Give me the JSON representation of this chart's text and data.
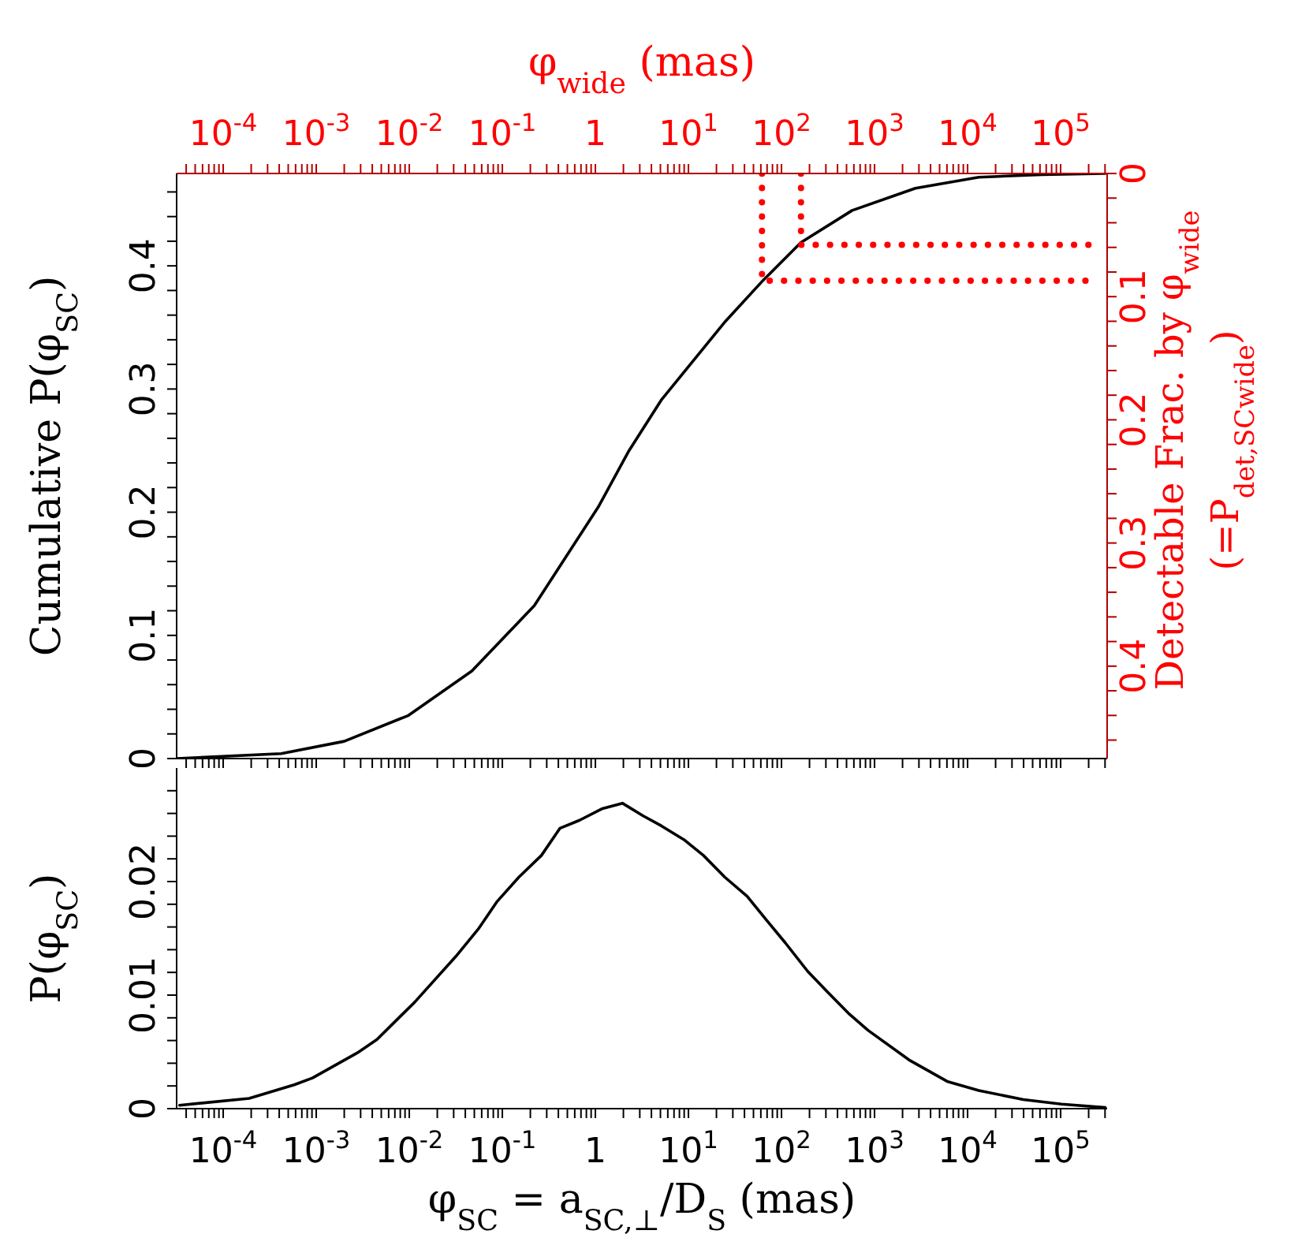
{
  "chart_data": [
    {
      "type": "line",
      "ylabel": "Cumulative P(φ$_{SC}$)",
      "xlabel": "φ$_{wide}$ (mas)",
      "y2label": "Detectable Frac. by φ$_{wide}$\n(=P$_{det,SC}$$_{wide}$)",
      "log": "x",
      "xlim": [
        3.16e-05,
        316000.0
      ],
      "xticks": [
        {
          "value": 4e-05,
          "label": null
        },
        {
          "value": 5e-05,
          "label": null
        },
        {
          "value": 6e-05,
          "label": null
        },
        {
          "value": 7e-05,
          "label": null
        },
        {
          "value": 8e-05,
          "label": null
        },
        {
          "value": 9e-05,
          "label": null
        },
        {
          "value": 0.0001,
          "label": "10$^{-4}$"
        },
        {
          "value": 0.0002,
          "label": null
        },
        {
          "value": 0.0003,
          "label": null
        },
        {
          "value": 0.0004,
          "label": null
        },
        {
          "value": 0.0005,
          "label": null
        },
        {
          "value": 0.0006,
          "label": null
        },
        {
          "value": 0.0007,
          "label": null
        },
        {
          "value": 0.0008,
          "label": null
        },
        {
          "value": 0.0009,
          "label": null
        },
        {
          "value": 0.001,
          "label": "10$^{-3}$"
        },
        {
          "value": 0.002,
          "label": null
        },
        {
          "value": 0.003,
          "label": null
        },
        {
          "value": 0.004,
          "label": null
        },
        {
          "value": 0.005,
          "label": null
        },
        {
          "value": 0.006,
          "label": null
        },
        {
          "value": 0.007,
          "label": null
        },
        {
          "value": 0.008,
          "label": null
        },
        {
          "value": 0.009,
          "label": null
        },
        {
          "value": 0.01,
          "label": "10$^{-2}$"
        },
        {
          "value": 0.02,
          "label": null
        },
        {
          "value": 0.03,
          "label": null
        },
        {
          "value": 0.04,
          "label": null
        },
        {
          "value": 0.05,
          "label": null
        },
        {
          "value": 0.06,
          "label": null
        },
        {
          "value": 0.07,
          "label": null
        },
        {
          "value": 0.08,
          "label": null
        },
        {
          "value": 0.09,
          "label": null
        },
        {
          "value": 0.1,
          "label": "10$^{-1}$"
        },
        {
          "value": 0.2,
          "label": null
        },
        {
          "value": 0.3,
          "label": null
        },
        {
          "value": 0.4,
          "label": null
        },
        {
          "value": 0.5,
          "label": null
        },
        {
          "value": 0.6,
          "label": null
        },
        {
          "value": 0.7,
          "label": null
        },
        {
          "value": 0.8,
          "label": null
        },
        {
          "value": 0.9,
          "label": null
        },
        1,
        {
          "value": 2,
          "label": null
        },
        {
          "value": 3,
          "label": null
        },
        {
          "value": 4,
          "label": null
        },
        {
          "value": 5,
          "label": null
        },
        {
          "value": 6,
          "label": null
        },
        {
          "value": 7,
          "label": null
        },
        {
          "value": 8,
          "label": null
        },
        {
          "value": 9,
          "label": null
        },
        {
          "value": 10,
          "label": "10$^{1}$"
        },
        {
          "value": 20,
          "label": null
        },
        {
          "value": 30,
          "label": null
        },
        {
          "value": 40,
          "label": null
        },
        {
          "value": 50,
          "label": null
        },
        {
          "value": 60,
          "label": null
        },
        {
          "value": 70,
          "label": null
        },
        {
          "value": 80,
          "label": null
        },
        {
          "value": 90,
          "label": null
        },
        {
          "value": 100,
          "label": "10$^{2}$"
        },
        {
          "value": 200,
          "label": null
        },
        {
          "value": 300,
          "label": null
        },
        {
          "value": 400,
          "label": null
        },
        {
          "value": 500,
          "label": null
        },
        {
          "value": 600,
          "label": null
        },
        {
          "value": 700,
          "label": null
        },
        {
          "value": 800,
          "label": null
        },
        {
          "value": 900,
          "label": null
        },
        {
          "value": 1000,
          "label": "10$^{3}$"
        },
        {
          "value": 2000,
          "label": null
        },
        {
          "value": 3000,
          "label": null
        },
        {
          "value": 4000,
          "label": null
        },
        {
          "value": 5000,
          "label": null
        },
        {
          "value": 6000,
          "label": null
        },
        {
          "value": 7000,
          "label": null
        },
        {
          "value": 8000,
          "label": null
        },
        {
          "value": 9000,
          "label": null
        },
        {
          "value": 10000,
          "label": "10$^{4}$"
        },
        {
          "value": 20000,
          "label": null
        },
        {
          "value": 30000,
          "label": null
        },
        {
          "value": 40000,
          "label": null
        },
        {
          "value": 50000,
          "label": null
        },
        {
          "value": 60000,
          "label": null
        },
        {
          "value": 70000,
          "label": null
        },
        {
          "value": 80000,
          "label": null
        },
        {
          "value": 90000,
          "label": null
        },
        {
          "value": 100000,
          "label": "10$^{5}$"
        },
        {
          "value": 200000,
          "label": null
        },
        {
          "value": 300000,
          "label": null
        }
      ],
      "ylim": [
        0,
        0.475
      ],
      "yticks": [
        0,
        {
          "value": 0.02,
          "label": null
        },
        {
          "value": 0.04,
          "label": null
        },
        {
          "value": 0.06,
          "label": null
        },
        {
          "value": 0.08,
          "label": null
        },
        0.1,
        {
          "value": 0.12,
          "label": null
        },
        {
          "value": 0.14,
          "label": null
        },
        {
          "value": 0.16,
          "label": null
        },
        {
          "value": 0.18,
          "label": null
        },
        0.2,
        {
          "value": 0.22,
          "label": null
        },
        {
          "value": 0.24,
          "label": null
        },
        {
          "value": 0.26,
          "label": null
        },
        {
          "value": 0.28,
          "label": null
        },
        0.3,
        {
          "value": 0.32,
          "label": null
        },
        {
          "value": 0.34,
          "label": null
        },
        {
          "value": 0.36,
          "label": null
        },
        {
          "value": 0.38,
          "label": null
        },
        0.4,
        {
          "value": 0.42,
          "label": null
        },
        {
          "value": 0.44,
          "label": null
        },
        {
          "value": 0.46,
          "label": null
        }
      ],
      "y2lim": [
        0.475,
        0
      ],
      "y2ticks": [
        0,
        {
          "value": 0.02,
          "label": null
        },
        {
          "value": 0.04,
          "label": null
        },
        {
          "value": 0.06,
          "label": null
        },
        {
          "value": 0.08,
          "label": null
        },
        0.1,
        {
          "value": 0.12,
          "label": null
        },
        {
          "value": 0.14,
          "label": null
        },
        {
          "value": 0.16,
          "label": null
        },
        {
          "value": 0.18,
          "label": null
        },
        0.2,
        {
          "value": 0.22,
          "label": null
        },
        {
          "value": 0.24,
          "label": null
        },
        {
          "value": 0.26,
          "label": null
        },
        {
          "value": 0.28,
          "label": null
        },
        0.3,
        {
          "value": 0.32,
          "label": null
        },
        {
          "value": 0.34,
          "label": null
        },
        {
          "value": 0.36,
          "label": null
        },
        {
          "value": 0.38,
          "label": null
        },
        0.4,
        {
          "value": 0.42,
          "label": null
        },
        {
          "value": 0.44,
          "label": null
        },
        {
          "value": 0.46,
          "label": null
        }
      ],
      "series": [
        {
          "color": "#000000",
          "x": [
            3.16e-05,
            0.00042,
            0.002,
            0.0098,
            0.047,
            0.22,
            1.07,
            2.3,
            5.1,
            25,
            63,
            162,
            575,
            2750,
            13200,
            63000,
            302000
          ],
          "values": [
            0,
            0.004,
            0.014,
            0.035,
            0.071,
            0.124,
            0.204,
            0.25,
            0.291,
            0.355,
            0.388,
            0.419,
            0.445,
            0.463,
            0.472,
            0.474,
            0.475
          ]
        },
        {
          "axis": "y2",
          "color": "#ff0000",
          "line_style": "dotted",
          "x": [
            61.7,
            61.7,
            224000
          ],
          "values": [
            0,
            0.087,
            0.087
          ]
        },
        {
          "axis": "y2",
          "color": "#ff0000",
          "line_style": "dotted",
          "x": [
            162,
            162,
            224000
          ],
          "values": [
            0,
            0.058,
            0.058
          ]
        }
      ]
    },
    {
      "type": "line",
      "xlabel": "φ$_{SC}$ = a$_{SC,⊥}$/D$_{S}$ (mas)",
      "ylabel": "P(φ$_{SC}$)",
      "log": "x",
      "xlim": [
        3.16e-05,
        316000.0
      ],
      "xticks": [
        {
          "value": 4e-05,
          "label": null
        },
        {
          "value": 5e-05,
          "label": null
        },
        {
          "value": 6e-05,
          "label": null
        },
        {
          "value": 7e-05,
          "label": null
        },
        {
          "value": 8e-05,
          "label": null
        },
        {
          "value": 9e-05,
          "label": null
        },
        {
          "value": 0.0001,
          "label": "10$^{-4}$"
        },
        {
          "value": 0.0002,
          "label": null
        },
        {
          "value": 0.0003,
          "label": null
        },
        {
          "value": 0.0004,
          "label": null
        },
        {
          "value": 0.0005,
          "label": null
        },
        {
          "value": 0.0006,
          "label": null
        },
        {
          "value": 0.0007,
          "label": null
        },
        {
          "value": 0.0008,
          "label": null
        },
        {
          "value": 0.0009,
          "label": null
        },
        {
          "value": 0.001,
          "label": "10$^{-3}$"
        },
        {
          "value": 0.002,
          "label": null
        },
        {
          "value": 0.003,
          "label": null
        },
        {
          "value": 0.004,
          "label": null
        },
        {
          "value": 0.005,
          "label": null
        },
        {
          "value": 0.006,
          "label": null
        },
        {
          "value": 0.007,
          "label": null
        },
        {
          "value": 0.008,
          "label": null
        },
        {
          "value": 0.009,
          "label": null
        },
        {
          "value": 0.01,
          "label": "10$^{-2}$"
        },
        {
          "value": 0.02,
          "label": null
        },
        {
          "value": 0.03,
          "label": null
        },
        {
          "value": 0.04,
          "label": null
        },
        {
          "value": 0.05,
          "label": null
        },
        {
          "value": 0.06,
          "label": null
        },
        {
          "value": 0.07,
          "label": null
        },
        {
          "value": 0.08,
          "label": null
        },
        {
          "value": 0.09,
          "label": null
        },
        {
          "value": 0.1,
          "label": "10$^{-1}$"
        },
        {
          "value": 0.2,
          "label": null
        },
        {
          "value": 0.3,
          "label": null
        },
        {
          "value": 0.4,
          "label": null
        },
        {
          "value": 0.5,
          "label": null
        },
        {
          "value": 0.6,
          "label": null
        },
        {
          "value": 0.7,
          "label": null
        },
        {
          "value": 0.8,
          "label": null
        },
        {
          "value": 0.9,
          "label": null
        },
        1,
        {
          "value": 2,
          "label": null
        },
        {
          "value": 3,
          "label": null
        },
        {
          "value": 4,
          "label": null
        },
        {
          "value": 5,
          "label": null
        },
        {
          "value": 6,
          "label": null
        },
        {
          "value": 7,
          "label": null
        },
        {
          "value": 8,
          "label": null
        },
        {
          "value": 9,
          "label": null
        },
        {
          "value": 10,
          "label": "10$^{1}$"
        },
        {
          "value": 20,
          "label": null
        },
        {
          "value": 30,
          "label": null
        },
        {
          "value": 40,
          "label": null
        },
        {
          "value": 50,
          "label": null
        },
        {
          "value": 60,
          "label": null
        },
        {
          "value": 70,
          "label": null
        },
        {
          "value": 80,
          "label": null
        },
        {
          "value": 90,
          "label": null
        },
        {
          "value": 100,
          "label": "10$^{2}$"
        },
        {
          "value": 200,
          "label": null
        },
        {
          "value": 300,
          "label": null
        },
        {
          "value": 400,
          "label": null
        },
        {
          "value": 500,
          "label": null
        },
        {
          "value": 600,
          "label": null
        },
        {
          "value": 700,
          "label": null
        },
        {
          "value": 800,
          "label": null
        },
        {
          "value": 900,
          "label": null
        },
        {
          "value": 1000,
          "label": "10$^{3}$"
        },
        {
          "value": 2000,
          "label": null
        },
        {
          "value": 3000,
          "label": null
        },
        {
          "value": 4000,
          "label": null
        },
        {
          "value": 5000,
          "label": null
        },
        {
          "value": 6000,
          "label": null
        },
        {
          "value": 7000,
          "label": null
        },
        {
          "value": 8000,
          "label": null
        },
        {
          "value": 9000,
          "label": null
        },
        {
          "value": 10000,
          "label": "10$^{4}$"
        },
        {
          "value": 20000,
          "label": null
        },
        {
          "value": 30000,
          "label": null
        },
        {
          "value": 40000,
          "label": null
        },
        {
          "value": 50000,
          "label": null
        },
        {
          "value": 60000,
          "label": null
        },
        {
          "value": 70000,
          "label": null
        },
        {
          "value": 80000,
          "label": null
        },
        {
          "value": 90000,
          "label": null
        },
        {
          "value": 100000,
          "label": "10$^{5}$"
        },
        {
          "value": 200000,
          "label": null
        },
        {
          "value": 300000,
          "label": null
        }
      ],
      "ylim": [
        0,
        0.03
      ],
      "yticks": [
        0,
        {
          "value": 0.002,
          "label": null
        },
        {
          "value": 0.004,
          "label": null
        },
        {
          "value": 0.006,
          "label": null
        },
        {
          "value": 0.008,
          "label": null
        },
        0.01,
        {
          "value": 0.012,
          "label": null
        },
        {
          "value": 0.014,
          "label": null
        },
        {
          "value": 0.016,
          "label": null
        },
        {
          "value": 0.018,
          "label": null
        },
        0.02,
        {
          "value": 0.022,
          "label": null
        },
        {
          "value": 0.024,
          "label": null
        },
        {
          "value": 0.026,
          "label": null
        },
        {
          "value": 0.028,
          "label": null
        }
      ],
      "series": [
        {
          "color": "#000000",
          "x": [
            3.4e-05,
            0.00019,
            0.00058,
            0.00091,
            0.00275,
            0.0045,
            0.0115,
            0.0316,
            0.055,
            0.087,
            0.151,
            0.263,
            0.417,
            0.676,
            1.17,
            1.95,
            3.24,
            5.13,
            8.9,
            14.5,
            24.5,
            42.7,
            69,
            110,
            191,
            302,
            525,
            851,
            2340,
            6030,
            13200,
            39800,
            102000,
            302000
          ],
          "values": [
            0.0003,
            0.0009,
            0.0021,
            0.0027,
            0.0049,
            0.0061,
            0.0094,
            0.0134,
            0.0158,
            0.0182,
            0.0204,
            0.0223,
            0.0247,
            0.0254,
            0.0264,
            0.0269,
            0.0258,
            0.0249,
            0.0237,
            0.0223,
            0.0204,
            0.0187,
            0.0166,
            0.0146,
            0.0121,
            0.0104,
            0.0084,
            0.0069,
            0.0043,
            0.0024,
            0.0016,
            0.0008,
            0.0004,
            0.0001
          ]
        }
      ]
    }
  ]
}
